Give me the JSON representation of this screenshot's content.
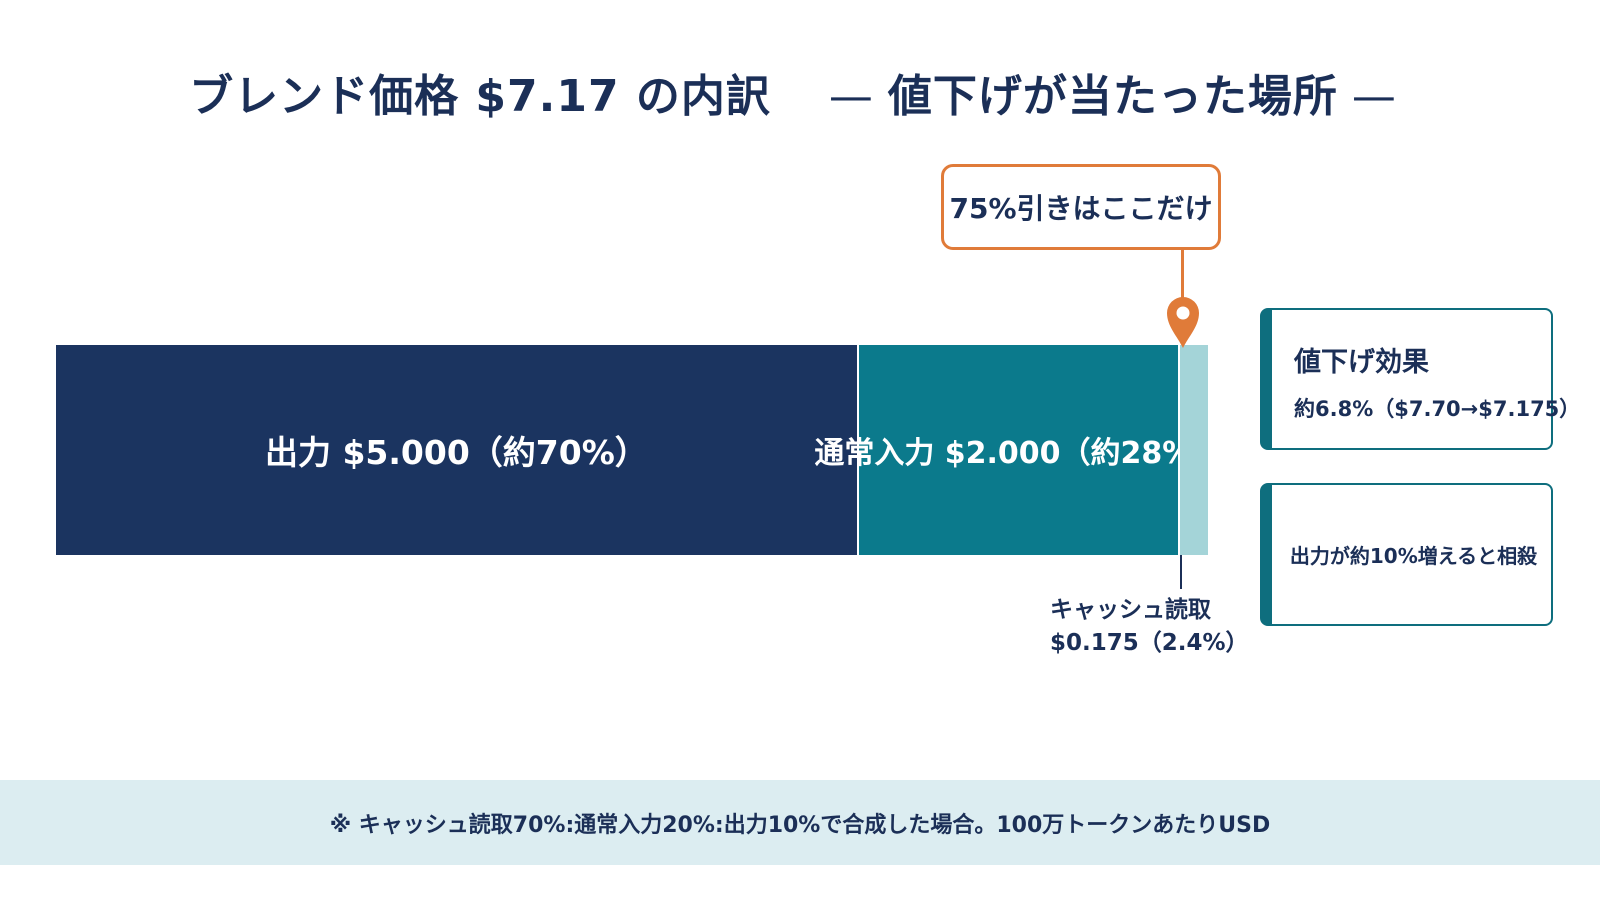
{
  "title": {
    "main": "ブレンド価格 $7.17 の内訳",
    "dash": "—",
    "sub": "値下げが当たった場所"
  },
  "colors": {
    "navy": "#1b3460",
    "teal": "#0b7a8c",
    "light_teal": "#a4d4d8",
    "accent_orange": "#e07b39",
    "text": "#1b2f57",
    "footer_bg": "#dcedf1"
  },
  "chart_data": {
    "type": "bar",
    "orientation": "horizontal-stacked",
    "categories": [
      "出力",
      "通常入力",
      "キャッシュ読取"
    ],
    "values": [
      5.0,
      2.0,
      0.175
    ],
    "labels": [
      "出力 $5.000（約70%）",
      "通常入力 $2.000（約28%）",
      "キャッシュ読取 $0.175（2.4%）"
    ],
    "total": 7.175
  },
  "callout": {
    "text": "75%引きはここだけ",
    "icon": "map-pin-icon"
  },
  "cache_label": {
    "line1": "キャッシュ読取",
    "line2": "$0.175（2.4%）"
  },
  "info_boxes": [
    {
      "title": "値下げ効果",
      "text": "約6.8%（$7.70→$7.175）"
    },
    {
      "text": "出力が約10%増えると相殺"
    }
  ],
  "footer": {
    "note": "※ キャッシュ読取70%:通常入力20%:出力10%で合成した場合。100万トークンあたりUSD"
  }
}
